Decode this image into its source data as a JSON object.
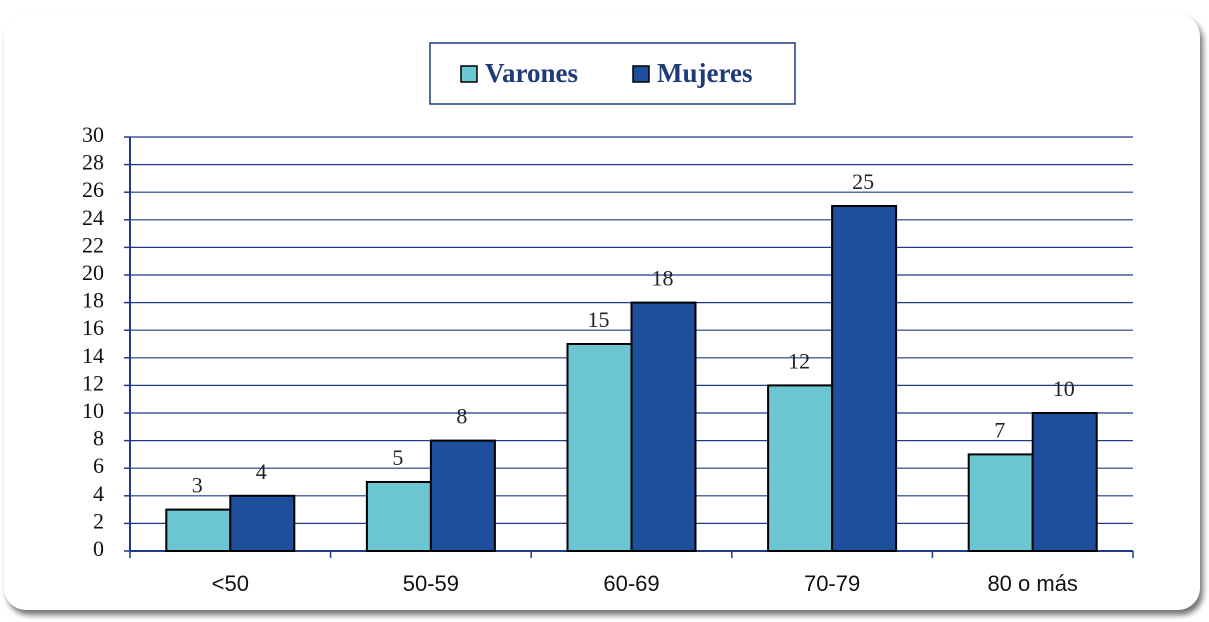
{
  "chart_data": {
    "type": "bar",
    "categories": [
      "<50",
      "50-59",
      "60-69",
      "70-79",
      "80 o más"
    ],
    "series": [
      {
        "name": "Varones",
        "color": "#6bc5d2",
        "values": [
          3,
          5,
          15,
          12,
          7
        ]
      },
      {
        "name": "Mujeres",
        "color": "#1d4f9c",
        "values": [
          4,
          8,
          18,
          25,
          10
        ]
      }
    ],
    "ylim": [
      0,
      30
    ],
    "yticks": [
      0,
      2,
      4,
      6,
      8,
      10,
      12,
      14,
      16,
      18,
      20,
      22,
      24,
      26,
      28,
      30
    ],
    "grid": true,
    "legend": "top"
  }
}
